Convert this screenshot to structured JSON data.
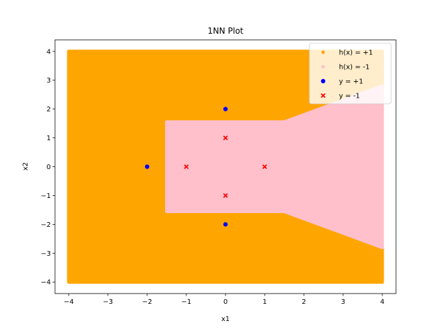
{
  "chart_data": {
    "type": "scatter",
    "title": "1NN Plot",
    "xlabel": "x1",
    "ylabel": "x2",
    "xlim": [
      -4.35,
      4.35
    ],
    "ylim": [
      -4.4,
      4.4
    ],
    "xticks": [
      -4,
      -3,
      -2,
      -1,
      0,
      1,
      2,
      3,
      4
    ],
    "yticks": [
      -4,
      -3,
      -2,
      -1,
      0,
      1,
      2,
      3,
      4
    ],
    "grid": false,
    "legend_placement": "top-right",
    "grid_range": {
      "x": [
        -4,
        4
      ],
      "y": [
        -4,
        4
      ]
    },
    "regions": [
      {
        "name": "h(x) = +1",
        "color": "#ffa500",
        "polygon": [
          [
            -4,
            -4
          ],
          [
            4,
            -4
          ],
          [
            4,
            4
          ],
          [
            -4,
            4
          ]
        ]
      },
      {
        "name": "h(x) = -1",
        "color": "#ffc0cb",
        "polygon": [
          [
            -1.5,
            -1.55
          ],
          [
            1.5,
            -1.55
          ],
          [
            4,
            -2.8
          ],
          [
            4,
            2.8
          ],
          [
            1.5,
            1.55
          ],
          [
            -1.5,
            1.55
          ]
        ]
      }
    ],
    "series": [
      {
        "name": "y = +1",
        "marker": "circle",
        "color": "#0000ff",
        "points": [
          [
            0,
            2
          ],
          [
            -2,
            0
          ],
          [
            0,
            -2
          ]
        ]
      },
      {
        "name": "y = -1",
        "marker": "x",
        "color": "#ff0000",
        "points": [
          [
            0,
            1
          ],
          [
            -1,
            0
          ],
          [
            1,
            0
          ],
          [
            0,
            -1
          ]
        ]
      }
    ],
    "legend": [
      {
        "label": "h(x) = +1",
        "color": "#ffa500",
        "marker": "circle-small"
      },
      {
        "label": "h(x) = -1",
        "color": "#ffc0cb",
        "marker": "circle-small"
      },
      {
        "label": "y = +1",
        "color": "#0000ff",
        "marker": "circle"
      },
      {
        "label": "y = -1",
        "color": "#ff0000",
        "marker": "x"
      }
    ]
  }
}
